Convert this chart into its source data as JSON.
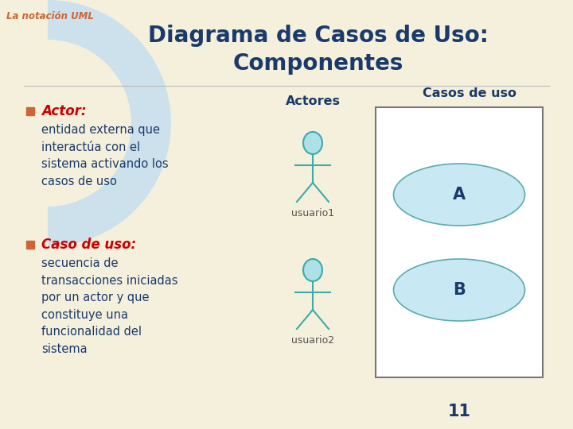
{
  "bg_color": "#F5F0DC",
  "header_curve_color": "#C5DFF0",
  "title_text_line1": "Diagrama de Casos de Uso:",
  "title_text_line2": "Componentes",
  "title_color": "#1A3A6B",
  "subtitle_tag": "La notación UML",
  "subtitle_tag_color": "#CC6633",
  "bullet1_label": "Actor",
  "bullet1_label_color": "#CC0000",
  "bullet1_body": "entidad externa que\ninteractúa con el\nsistema activando los\ncasos de uso",
  "bullet1_body_color": "#1A3A6B",
  "bullet2_label": "Caso de uso",
  "bullet2_label_color": "#CC0000",
  "bullet2_body": "secuencia de\ntransacciones iniciadas\npor un actor y que\nconstituye una\nfuncionalidad del\nsistema",
  "bullet2_body_color": "#1A3A6B",
  "bullet_sq_color": "#CC6633",
  "actores_label": "Actores",
  "actores_label_color": "#1A3A6B",
  "casos_label": "Casos de uso",
  "casos_label_color": "#1A3A6B",
  "actor_stroke": "#3AACAC",
  "actor_head_fill": "#AEE0E8",
  "label_color": "#555555",
  "ellipse_fill": "#C8E8F4",
  "ellipse_edge": "#5AACAC",
  "box_fill": "#FFFFFF",
  "box_edge": "#777777",
  "case_label_color": "#1A3A6B",
  "page_number": "11",
  "page_num_color": "#1A3A6B"
}
